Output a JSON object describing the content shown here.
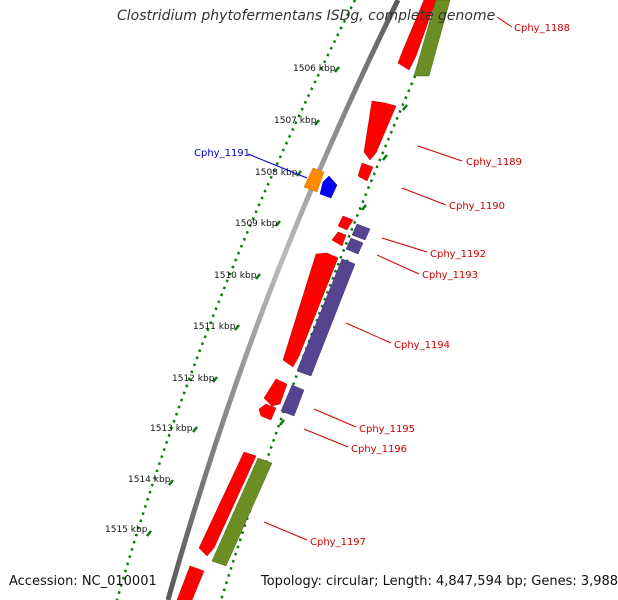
{
  "title": "Clostridium phytofermentans ISDg, complete genome",
  "footer": {
    "accession": "Accession: NC_010001",
    "summary": "Topology: circular; Length: 4,847,594 bp; Genes: 3,988"
  },
  "colors": {
    "backbone": "#7a7a7a",
    "ticks": "#0a7a0a",
    "gene_red": "#ff0000",
    "gene_green": "#6b8e23",
    "gene_purple": "#55448f",
    "gene_orange": "#ff8c00",
    "gene_blue": "#0000ff",
    "label_red": "#cc0000",
    "label_blue": "#0000cc"
  },
  "scale_labels": [
    "1506 kbp",
    "1507 kbp",
    "1508 kbp",
    "1509 kbp",
    "1510 kbp",
    "1511 kbp",
    "1512 kbp",
    "1513 kbp",
    "1514 kbp",
    "1515 kbp"
  ],
  "gene_labels": [
    {
      "text": "Cphy_1188",
      "color": "red"
    },
    {
      "text": "Cphy_1189",
      "color": "red"
    },
    {
      "text": "Cphy_1190",
      "color": "red"
    },
    {
      "text": "Cphy_1191",
      "color": "blue"
    },
    {
      "text": "Cphy_1192",
      "color": "red"
    },
    {
      "text": "Cphy_1193",
      "color": "red"
    },
    {
      "text": "Cphy_1194",
      "color": "red"
    },
    {
      "text": "Cphy_1195",
      "color": "red"
    },
    {
      "text": "Cphy_1196",
      "color": "red"
    },
    {
      "text": "Cphy_1197",
      "color": "red"
    }
  ]
}
